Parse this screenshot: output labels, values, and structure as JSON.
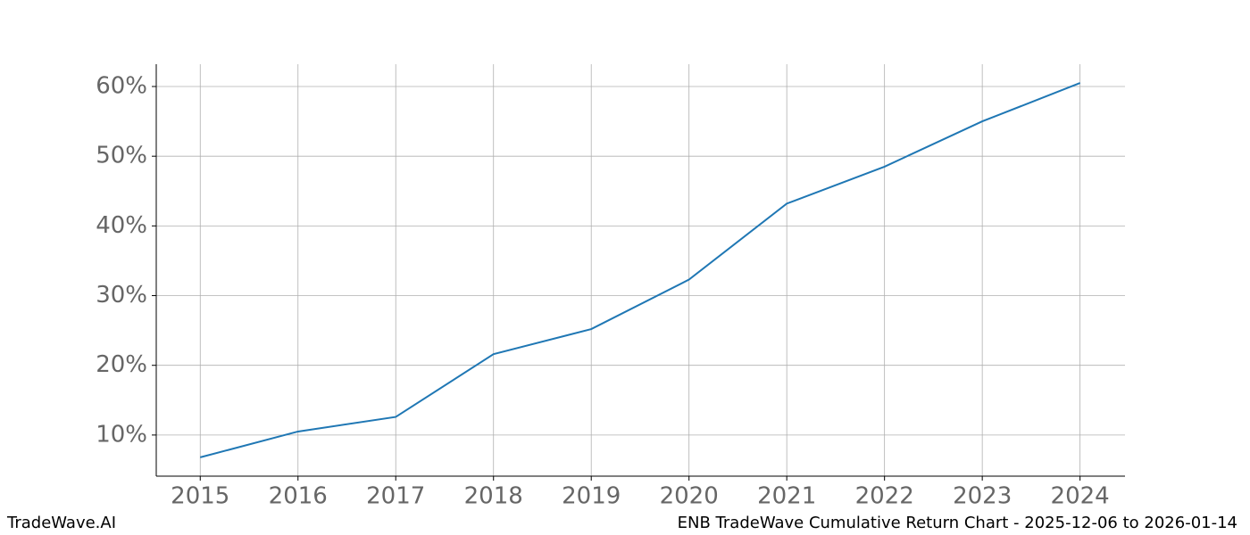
{
  "chart_data": {
    "type": "line",
    "x": [
      2015,
      2016,
      2017,
      2018,
      2019,
      2020,
      2021,
      2022,
      2023,
      2024
    ],
    "values": [
      6.8,
      10.5,
      12.6,
      21.6,
      25.2,
      32.3,
      43.2,
      48.5,
      55.0,
      60.5
    ],
    "color": "#1f77b4",
    "xlim": [
      2014.55,
      2024.46
    ],
    "xticks": [
      2015,
      2016,
      2017,
      2018,
      2019,
      2020,
      2021,
      2022,
      2023,
      2024
    ],
    "ylim": [
      4.1,
      63.2
    ],
    "yticks": [
      {
        "value": 10,
        "label": "10%"
      },
      {
        "value": 20,
        "label": "20%"
      },
      {
        "value": 30,
        "label": "30%"
      },
      {
        "value": 40,
        "label": "40%"
      },
      {
        "value": 50,
        "label": "50%"
      },
      {
        "value": 60,
        "label": "60%"
      }
    ],
    "grid": true
  },
  "footer": {
    "left": "TradeWave.AI",
    "right": "ENB TradeWave Cumulative Return Chart - 2025-12-06 to 2026-01-14"
  }
}
